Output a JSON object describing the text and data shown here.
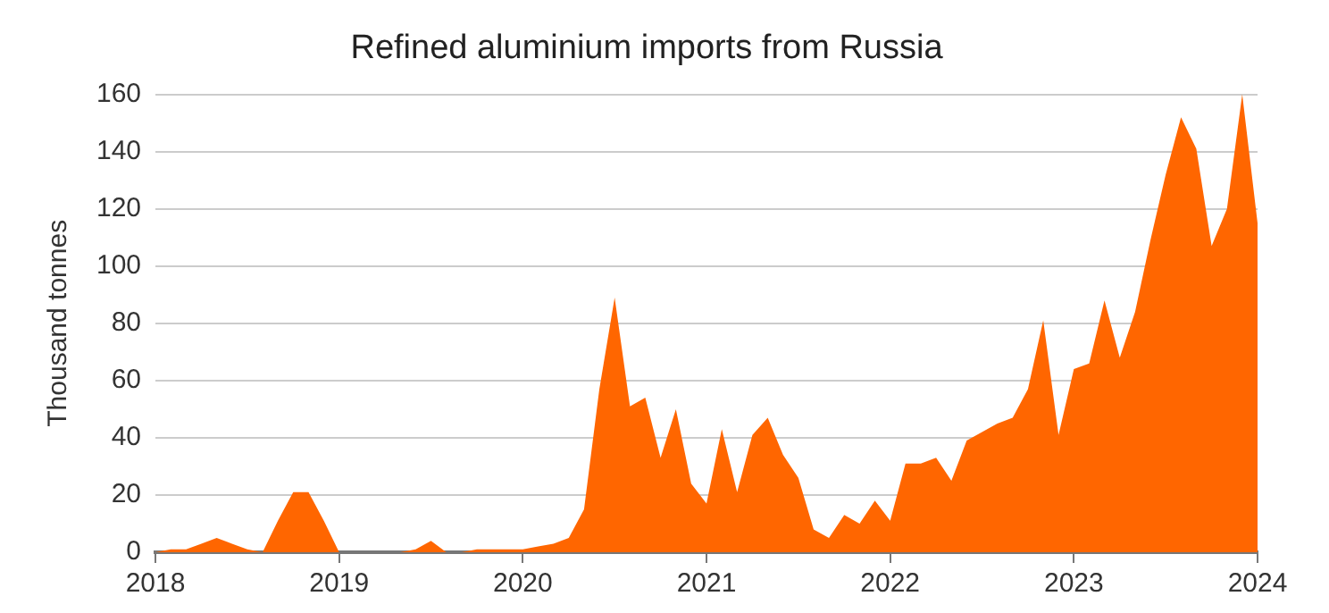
{
  "chart_data": {
    "type": "area",
    "title": "Refined aluminium imports from Russia",
    "ylabel": "Thousand tonnes",
    "x": [
      "2018-01",
      "2018-02",
      "2018-03",
      "2018-04",
      "2018-05",
      "2018-06",
      "2018-07",
      "2018-08",
      "2018-09",
      "2018-10",
      "2018-11",
      "2018-12",
      "2019-01",
      "2019-02",
      "2019-03",
      "2019-04",
      "2019-05",
      "2019-06",
      "2019-07",
      "2019-08",
      "2019-09",
      "2019-10",
      "2019-11",
      "2019-12",
      "2020-01",
      "2020-02",
      "2020-03",
      "2020-04",
      "2020-05",
      "2020-06",
      "2020-07",
      "2020-08",
      "2020-09",
      "2020-10",
      "2020-11",
      "2020-12",
      "2021-01",
      "2021-02",
      "2021-03",
      "2021-04",
      "2021-05",
      "2021-06",
      "2021-07",
      "2021-08",
      "2021-09",
      "2021-10",
      "2021-11",
      "2021-12",
      "2022-01",
      "2022-02",
      "2022-03",
      "2022-04",
      "2022-05",
      "2022-06",
      "2022-07",
      "2022-08",
      "2022-09",
      "2022-10",
      "2022-11",
      "2022-12",
      "2023-01",
      "2023-02",
      "2023-03",
      "2023-04",
      "2023-05",
      "2023-06",
      "2023-07",
      "2023-08",
      "2023-09",
      "2023-10",
      "2023-11",
      "2023-12",
      "2024-01"
    ],
    "series": [
      {
        "color": "#ff6600",
        "values": [
          0,
          1,
          1,
          3,
          5,
          3,
          1,
          0,
          11,
          21,
          21,
          11,
          0,
          0,
          0,
          0,
          0,
          1,
          4,
          0,
          0,
          1,
          1,
          1,
          1,
          2,
          3,
          5,
          15,
          57,
          89,
          51,
          54,
          33,
          50,
          24,
          17,
          43,
          21,
          41,
          47,
          34,
          26,
          8,
          5,
          13,
          10,
          18,
          11,
          31,
          31,
          33,
          25,
          39,
          42,
          45,
          47,
          57,
          81,
          41,
          64,
          66,
          88,
          68,
          84,
          109,
          132,
          152,
          141,
          107,
          120,
          160,
          115
        ]
      }
    ],
    "xlim": [
      "2018",
      "2024"
    ],
    "xticks": [
      "2018",
      "2019",
      "2020",
      "2021",
      "2022",
      "2023",
      "2024"
    ],
    "ylim": [
      0,
      160
    ],
    "yticks": [
      0,
      20,
      40,
      60,
      80,
      100,
      120,
      140,
      160
    ],
    "grid": "y",
    "legend": false,
    "marker": "none"
  }
}
